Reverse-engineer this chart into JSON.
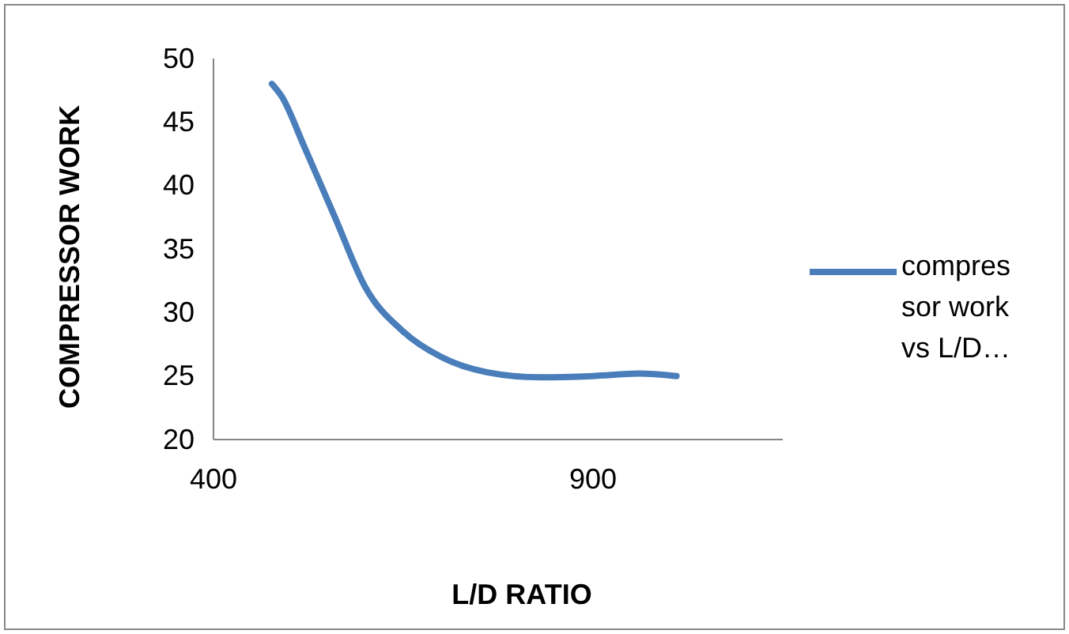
{
  "chart_data": {
    "type": "line",
    "xlabel": "L/D RATIO",
    "ylabel": "COMPRESSOR WORK",
    "xlim": [
      400,
      1150
    ],
    "xticks": [
      400,
      900
    ],
    "ylim": [
      20,
      50
    ],
    "yticks": [
      20,
      25,
      30,
      35,
      40,
      45,
      50
    ],
    "grid": false,
    "legend": "right",
    "marker": "none",
    "line_style": "solid",
    "series": [
      {
        "name": "compressor work vs L/D…",
        "color": "#4a7ebb",
        "x": [
          477,
          490,
          520,
          560,
          600,
          650,
          700,
          760,
          830,
          900,
          960,
          1010
        ],
        "values": [
          48,
          47,
          43,
          37.5,
          32,
          28.5,
          26.5,
          25.3,
          24.9,
          25,
          25.2,
          25
        ]
      }
    ]
  }
}
